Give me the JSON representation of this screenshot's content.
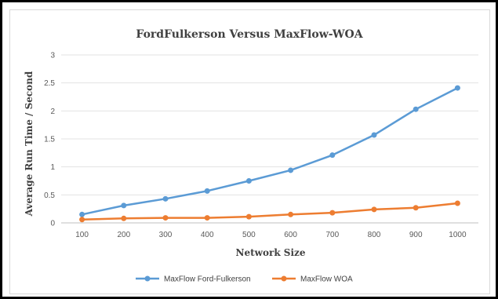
{
  "chart_data": {
    "type": "line",
    "title": "FordFulkerson Versus MaxFlow-WOA",
    "xlabel": "Network Size",
    "ylabel": "Average Run Time / Second",
    "categories": [
      "100",
      "200",
      "300",
      "400",
      "500",
      "600",
      "700",
      "800",
      "900",
      "1000"
    ],
    "yticks": [
      "0",
      "0.5",
      "1",
      "1.5",
      "2",
      "2.5",
      "3"
    ],
    "ylim": [
      0,
      3
    ],
    "grid": true,
    "legend_position": "bottom",
    "series": [
      {
        "name": "MaxFlow Ford-Fulkerson",
        "color": "#5b9bd5",
        "values": [
          0.15,
          0.31,
          0.43,
          0.57,
          0.75,
          0.94,
          1.21,
          1.57,
          2.03,
          2.41
        ]
      },
      {
        "name": "MaxFlow WOA",
        "color": "#ed7d31",
        "values": [
          0.06,
          0.08,
          0.09,
          0.09,
          0.11,
          0.15,
          0.18,
          0.24,
          0.27,
          0.35
        ]
      }
    ]
  }
}
